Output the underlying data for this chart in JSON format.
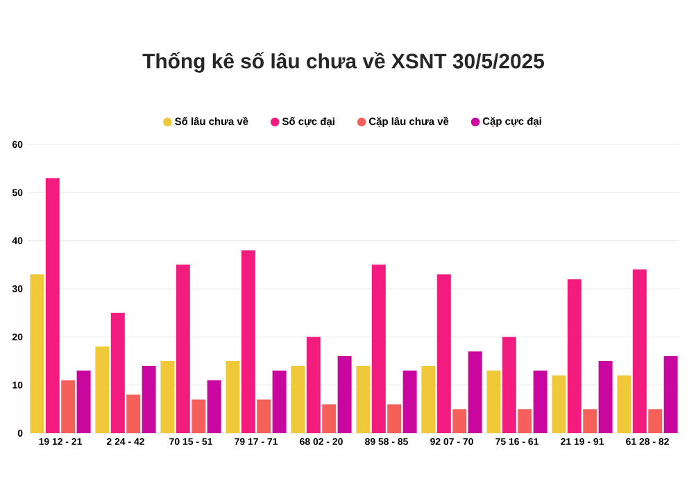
{
  "chart_data": {
    "type": "bar",
    "title": "Thống kê số lâu chưa về XSNT 30/5/2025",
    "categories": [
      "19 12 - 21",
      "2 24 - 42",
      "70 15 - 51",
      "79 17 - 71",
      "68 02 - 20",
      "89 58 - 85",
      "92 07 - 70",
      "75 16 - 61",
      "21 19 - 91",
      "61 28 - 82"
    ],
    "series": [
      {
        "name": "Số lâu chưa về",
        "color": "#f0c93a",
        "values": [
          33,
          18,
          15,
          15,
          14,
          14,
          14,
          13,
          12,
          12
        ]
      },
      {
        "name": "Số cực đại",
        "color": "#f21c7f",
        "values": [
          53,
          25,
          35,
          38,
          20,
          35,
          33,
          20,
          32,
          34
        ]
      },
      {
        "name": "Cặp lâu chưa về",
        "color": "#f5605a",
        "values": [
          11,
          8,
          7,
          7,
          6,
          6,
          5,
          5,
          5,
          5
        ]
      },
      {
        "name": "Cặp cực đại",
        "color": "#c9079f",
        "values": [
          13,
          14,
          11,
          13,
          16,
          13,
          17,
          13,
          15,
          16
        ]
      }
    ],
    "ylim": [
      0,
      60
    ],
    "yticks": [
      0,
      10,
      20,
      30,
      40,
      50,
      60
    ],
    "grid": "y",
    "legend": "top"
  }
}
